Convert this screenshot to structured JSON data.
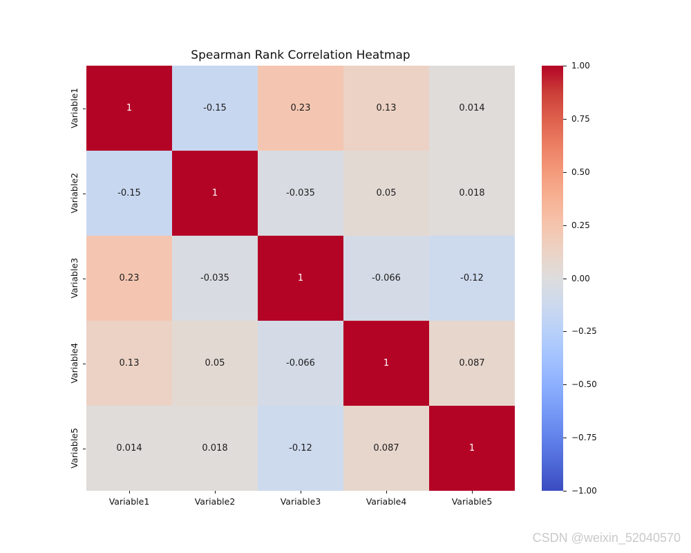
{
  "title": "Spearman Rank Correlation Heatmap",
  "watermark": "CSDN @weixin_52040570",
  "chart_data": {
    "type": "heatmap",
    "title": "Spearman Rank Correlation Heatmap",
    "x_labels": [
      "Variable1",
      "Variable2",
      "Variable3",
      "Variable4",
      "Variable5"
    ],
    "y_labels": [
      "Variable1",
      "Variable2",
      "Variable3",
      "Variable4",
      "Variable5"
    ],
    "values": [
      [
        1,
        -0.15,
        0.23,
        0.13,
        0.014
      ],
      [
        -0.15,
        1,
        -0.035,
        0.05,
        0.018
      ],
      [
        0.23,
        -0.035,
        1,
        -0.066,
        -0.12
      ],
      [
        0.13,
        0.05,
        -0.066,
        1,
        0.087
      ],
      [
        0.014,
        0.018,
        -0.12,
        0.087,
        1
      ]
    ],
    "cell_labels": [
      [
        "1",
        "-0.15",
        "0.23",
        "0.13",
        "0.014"
      ],
      [
        "-0.15",
        "1",
        "-0.035",
        "0.05",
        "0.018"
      ],
      [
        "0.23",
        "-0.035",
        "1",
        "-0.066",
        "-0.12"
      ],
      [
        "0.13",
        "0.05",
        "-0.066",
        "1",
        "0.087"
      ],
      [
        "0.014",
        "0.018",
        "-0.12",
        "0.087",
        "1"
      ]
    ],
    "vmin": -1,
    "vmax": 1,
    "colormap": "coolwarm",
    "colormap_anchors": [
      {
        "t": 0.0,
        "color": "#3b4cc0"
      },
      {
        "t": 0.0625,
        "color": "#4d68d7"
      },
      {
        "t": 0.125,
        "color": "#6282ea"
      },
      {
        "t": 0.1875,
        "color": "#779af7"
      },
      {
        "t": 0.25,
        "color": "#8db0fe"
      },
      {
        "t": 0.3125,
        "color": "#a3c2ff"
      },
      {
        "t": 0.375,
        "color": "#b8d0f9"
      },
      {
        "t": 0.4375,
        "color": "#ccd9ee"
      },
      {
        "t": 0.5,
        "color": "#dddddd"
      },
      {
        "t": 0.5625,
        "color": "#ecd3c5"
      },
      {
        "t": 0.625,
        "color": "#f5c4ad"
      },
      {
        "t": 0.6875,
        "color": "#f7b194"
      },
      {
        "t": 0.75,
        "color": "#f49a7b"
      },
      {
        "t": 0.8125,
        "color": "#ec7f63"
      },
      {
        "t": 0.875,
        "color": "#de604d"
      },
      {
        "t": 0.9375,
        "color": "#cb3e38"
      },
      {
        "t": 1.0,
        "color": "#b40426"
      }
    ],
    "annotation_color_dark": "#1c1c1c",
    "annotation_color_light": "#ffffff",
    "colorbar_ticks": [
      "1.00",
      "0.75",
      "0.50",
      "0.25",
      "0.00",
      "−0.25",
      "−0.50",
      "−0.75",
      "−1.00"
    ],
    "legend_position": "right",
    "grid": false
  }
}
